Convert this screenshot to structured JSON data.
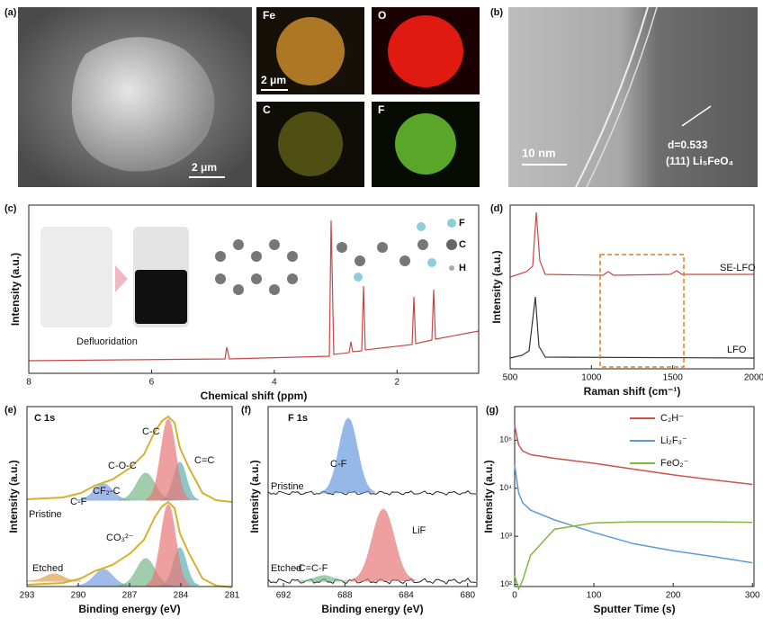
{
  "figure": {
    "panel_a": {
      "label": "(a)",
      "sem_scale": "2 μm",
      "maps": [
        "Fe",
        "O",
        "C",
        "F"
      ],
      "map_scale": "2 μm"
    },
    "panel_b": {
      "label": "(b)",
      "scale": "10 nm",
      "spacing": "d=0.533",
      "plane": "(111) Li₅FeO₄"
    }
  },
  "chart_data": [
    {
      "type": "line",
      "label": "(c)",
      "xlabel": "Chemical shift (ppm)",
      "ylabel": "Intensity (a.u.)",
      "xlim": [
        8,
        0.67
      ],
      "xticks": [
        8,
        6,
        4,
        2
      ],
      "annotations": [
        "Defluoridation",
        "F",
        "C",
        "H"
      ]
    },
    {
      "type": "line",
      "label": "(d)",
      "xlabel": "Raman shift (cm⁻¹)",
      "ylabel": "Intensity (a.u.)",
      "xlim": [
        500,
        2000
      ],
      "xticks": [
        500,
        1000,
        1500,
        2000
      ],
      "annotations": [
        "SE-LFO",
        "LFO"
      ]
    },
    {
      "type": "line",
      "label": "(e)",
      "xlabel": "Binding energy (eV)",
      "ylabel": "Intensity (a.u.)",
      "xlim": [
        293,
        281
      ],
      "xticks": [
        293,
        290,
        287,
        284,
        281
      ],
      "annotations": [
        "C 1s",
        "C-C",
        "C-O-C",
        "CF₂-C",
        "C-F",
        "C=C",
        "Pristine",
        "Etched",
        "CO₃²⁻"
      ]
    },
    {
      "type": "line",
      "label": "(f)",
      "xlabel": "Binding energy (eV)",
      "ylabel": "Intensity (a.u.)",
      "xlim": [
        693,
        679.4
      ],
      "xticks": [
        692,
        688,
        684,
        680
      ],
      "annotations": [
        "F 1s",
        "C-F",
        "Pristine",
        "LiF",
        "Etched",
        "-C=C-F"
      ]
    },
    {
      "type": "line",
      "label": "(g)",
      "xlabel": "Sputter Time (s)",
      "ylabel": "Intensity (a.u.)",
      "xlim": [
        0,
        302
      ],
      "xticks": [
        0,
        100,
        200,
        300
      ],
      "log_y": true,
      "ylim": [
        90,
        500000
      ],
      "yticks": [
        {
          "value": 100,
          "label": "10²"
        },
        {
          "value": 1000,
          "label": "10³"
        },
        {
          "value": 10000,
          "label": "10⁴"
        },
        {
          "value": 100000,
          "label": "10⁵"
        }
      ],
      "x": [
        0,
        5,
        10,
        20,
        50,
        100,
        150,
        200,
        250,
        300
      ],
      "series": [
        {
          "name": "C₂H⁻",
          "color": "#d0504c",
          "values": [
            200000,
            80000,
            60000,
            50000,
            42000,
            33000,
            25000,
            19000,
            15000,
            12000
          ]
        },
        {
          "name": "Li₂F₃⁻",
          "color": "#5b9bd5",
          "values": [
            30000,
            8000,
            5000,
            3500,
            2200,
            1200,
            700,
            500,
            380,
            280
          ]
        },
        {
          "name": "FeO₂⁻",
          "color": "#7fb93b",
          "values": [
            150,
            80,
            120,
            400,
            1400,
            1900,
            2000,
            2000,
            2000,
            1950
          ]
        }
      ]
    }
  ]
}
